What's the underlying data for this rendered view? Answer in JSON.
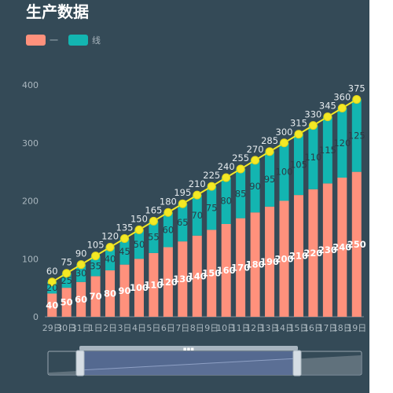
{
  "title": "生产数据",
  "legend": [
    {
      "label": "一",
      "color": "#ff917c"
    },
    {
      "label": "线",
      "color": "#13b5b1"
    }
  ],
  "line_color": "#f4e925",
  "chart_data": {
    "type": "bar",
    "stacked": true,
    "title": "生产数据",
    "categories": [
      "29日",
      "30日",
      "31日",
      "1日",
      "2日",
      "3日",
      "4日",
      "5日",
      "6日",
      "7日",
      "8日",
      "9日",
      "10日",
      "11日",
      "12日",
      "13日",
      "14日",
      "15日",
      "16日",
      "17日",
      "18日",
      "19日"
    ],
    "series": [
      {
        "name": "一",
        "type": "bar",
        "color": "#ff917c",
        "values": [
          40,
          50,
          60,
          70,
          80,
          90,
          100,
          110,
          120,
          130,
          140,
          150,
          160,
          170,
          180,
          190,
          200,
          210,
          220,
          230,
          240,
          250
        ]
      },
      {
        "name": "线",
        "type": "bar",
        "color": "#13b5b1",
        "values": [
          20,
          25,
          30,
          35,
          40,
          45,
          50,
          55,
          60,
          65,
          70,
          75,
          80,
          85,
          90,
          95,
          100,
          105,
          110,
          115,
          120,
          125
        ]
      },
      {
        "type": "line",
        "color": "#f4e925",
        "values": [
          60,
          75,
          90,
          105,
          120,
          135,
          150,
          165,
          180,
          195,
          210,
          225,
          240,
          255,
          270,
          285,
          300,
          315,
          330,
          345,
          360,
          375
        ]
      }
    ],
    "yticks": [
      0,
      100,
      200,
      300,
      400
    ],
    "ylim": [
      0,
      400
    ],
    "grid": false,
    "legend_position": "top-left",
    "datazoom": {
      "start": 0,
      "end": 1
    }
  }
}
